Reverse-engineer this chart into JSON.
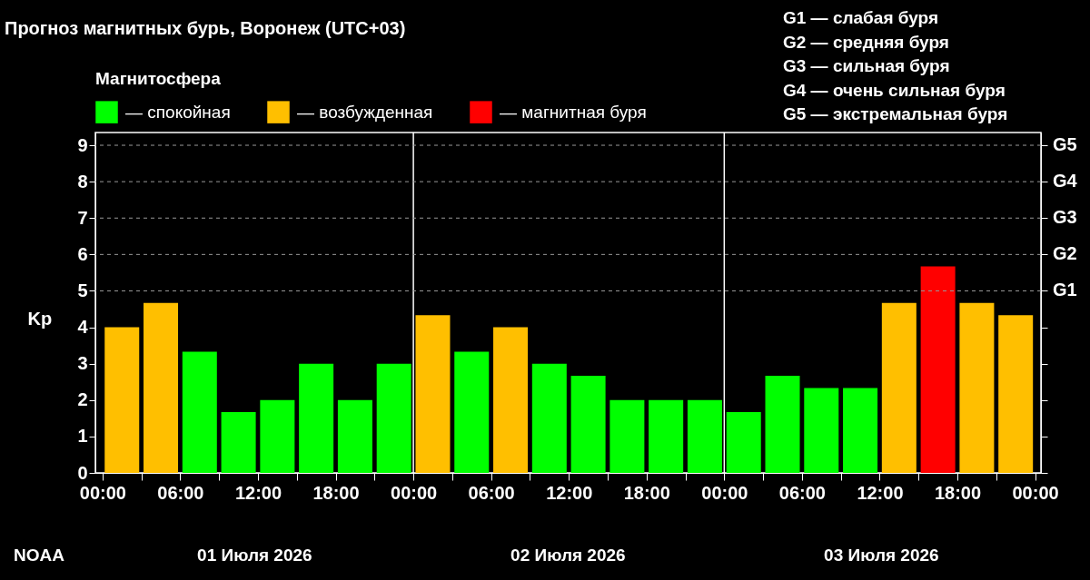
{
  "chart_data": {
    "type": "bar",
    "title": "Прогноз магнитных бурь, Воронеж (UTC+03)",
    "ylabel": "Kp",
    "legend_title": "Магнитосфера",
    "legend": "top left",
    "x": [
      "2026-07-01T01:30",
      "2026-07-01T04:30",
      "2026-07-01T07:30",
      "2026-07-01T10:30",
      "2026-07-01T13:30",
      "2026-07-01T16:30",
      "2026-07-01T19:30",
      "2026-07-01T22:30",
      "2026-07-02T01:30",
      "2026-07-02T04:30",
      "2026-07-02T07:30",
      "2026-07-02T10:30",
      "2026-07-02T13:30",
      "2026-07-02T16:30",
      "2026-07-02T19:30",
      "2026-07-02T22:30",
      "2026-07-03T01:30",
      "2026-07-03T04:30",
      "2026-07-03T07:30",
      "2026-07-03T10:30",
      "2026-07-03T13:30",
      "2026-07-03T16:30",
      "2026-07-03T19:30",
      "2026-07-03T22:30"
    ],
    "series": [
      {
        "name": "— спокойная",
        "color": "#00ff00",
        "values": [
          null,
          null,
          3.33,
          1.67,
          2,
          3,
          2,
          3,
          null,
          3.33,
          null,
          3,
          2.67,
          2,
          2,
          2,
          1.67,
          2.67,
          2.33,
          2.33,
          null,
          null,
          null,
          null
        ]
      },
      {
        "name": "— возбужденная",
        "color": "#ffbf00",
        "values": [
          4,
          4.67,
          null,
          null,
          null,
          null,
          null,
          null,
          4.33,
          null,
          4,
          null,
          null,
          null,
          null,
          null,
          null,
          null,
          null,
          null,
          4.67,
          null,
          4.67,
          4.33
        ]
      },
      {
        "name": "— магнитная буря",
        "color": "#ff0000",
        "values": [
          null,
          null,
          null,
          null,
          null,
          null,
          null,
          null,
          null,
          null,
          null,
          null,
          null,
          null,
          null,
          null,
          null,
          null,
          null,
          null,
          null,
          5.67,
          null,
          null
        ]
      }
    ],
    "xlim": [
      "2026-06-30T23:48",
      "2026-07-04T00:06"
    ],
    "xticks": [
      {
        "value": "2026-07-01T00:00",
        "label": "00:00"
      },
      {
        "value": "2026-07-01T03:00",
        "label": null
      },
      {
        "value": "2026-07-01T06:00",
        "label": "06:00"
      },
      {
        "value": "2026-07-01T09:00",
        "label": null
      },
      {
        "value": "2026-07-01T12:00",
        "label": "12:00"
      },
      {
        "value": "2026-07-01T15:00",
        "label": null
      },
      {
        "value": "2026-07-01T18:00",
        "label": "18:00"
      },
      {
        "value": "2026-07-01T21:00",
        "label": null
      },
      {
        "value": "2026-07-02T00:00",
        "label": "00:00"
      },
      {
        "value": "2026-07-02T03:00",
        "label": null
      },
      {
        "value": "2026-07-02T06:00",
        "label": "06:00"
      },
      {
        "value": "2026-07-02T09:00",
        "label": null
      },
      {
        "value": "2026-07-02T12:00",
        "label": "12:00"
      },
      {
        "value": "2026-07-02T15:00",
        "label": null
      },
      {
        "value": "2026-07-02T18:00",
        "label": "18:00"
      },
      {
        "value": "2026-07-02T21:00",
        "label": null
      },
      {
        "value": "2026-07-03T00:00",
        "label": "00:00"
      },
      {
        "value": "2026-07-03T03:00",
        "label": null
      },
      {
        "value": "2026-07-03T06:00",
        "label": "06:00"
      },
      {
        "value": "2026-07-03T09:00",
        "label": null
      },
      {
        "value": "2026-07-03T12:00",
        "label": "12:00"
      },
      {
        "value": "2026-07-03T15:00",
        "label": null
      },
      {
        "value": "2026-07-03T18:00",
        "label": "18:00"
      },
      {
        "value": "2026-07-03T21:00",
        "label": null
      },
      {
        "value": "2026-07-04T00:00",
        "label": "00:00"
      }
    ],
    "ylim": [
      0,
      9.35
    ],
    "yticks": [
      0,
      1,
      2,
      3,
      4,
      5,
      6,
      7,
      8,
      9
    ],
    "ref_lines": [
      {
        "axis": "x",
        "value": "2026-07-02T00:00",
        "color": "#ffffff",
        "line_style": "solid"
      },
      {
        "axis": "x",
        "value": "2026-07-03T00:00",
        "color": "#ffffff",
        "line_style": "solid"
      },
      {
        "axis": "y",
        "value": 5,
        "label": "G1",
        "color": "#999999",
        "line_style": "dashed"
      },
      {
        "axis": "y",
        "value": 6,
        "label": "G2",
        "color": "#999999",
        "line_style": "dashed"
      },
      {
        "axis": "y",
        "value": 7,
        "label": "G3",
        "color": "#999999",
        "line_style": "dashed"
      },
      {
        "axis": "y",
        "value": 8,
        "label": "G4",
        "color": "#999999",
        "line_style": "dashed"
      },
      {
        "axis": "y",
        "value": 9,
        "label": "G5",
        "color": "#999999",
        "line_style": "dashed"
      }
    ],
    "annotations": [
      "G1 — слабая буря",
      "G2 — средняя буря",
      "G3 — сильная буря",
      "G4 — очень сильная буря",
      "G5 — экстремальная буря",
      "01 Июля 2026",
      "02 Июля 2026",
      "03 Июля 2026",
      "NOAA"
    ]
  }
}
